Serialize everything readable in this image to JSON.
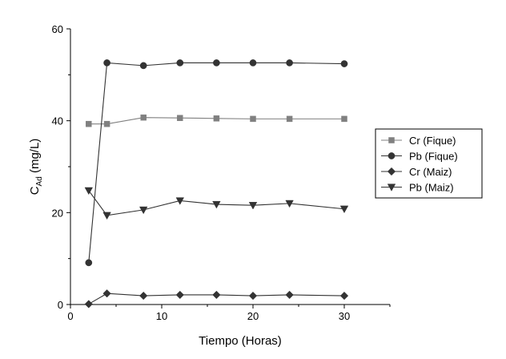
{
  "chart_data": {
    "type": "line",
    "xlabel": "Tiempo (Horas)",
    "ylabel": {
      "main": "C",
      "sub": "Ad",
      "unit": " (mg/L)"
    },
    "xlim": [
      0,
      35
    ],
    "ylim": [
      0,
      60
    ],
    "xticks": [
      0,
      10,
      20,
      30
    ],
    "yticks": [
      0,
      20,
      40,
      60
    ],
    "xtick_labels": [
      "0",
      "10",
      "20",
      "30"
    ],
    "ytick_labels": [
      "0",
      "20",
      "40",
      "60"
    ],
    "grid": false,
    "legend_position": "right",
    "series": [
      {
        "name": "Cr (Fique)",
        "marker": "square",
        "color": "#808080",
        "x": [
          2,
          4,
          8,
          12,
          16,
          20,
          24,
          30
        ],
        "y": [
          39.3,
          39.3,
          40.7,
          40.6,
          40.5,
          40.4,
          40.4,
          40.4
        ]
      },
      {
        "name": "Pb (Fique)",
        "marker": "circle",
        "color": "#333333",
        "x": [
          2,
          4,
          8,
          12,
          16,
          20,
          24,
          30
        ],
        "y": [
          9.1,
          52.6,
          52.0,
          52.6,
          52.6,
          52.6,
          52.6,
          52.4
        ]
      },
      {
        "name": "Cr (Maiz)",
        "marker": "diamond",
        "color": "#333333",
        "x": [
          2,
          4,
          8,
          12,
          16,
          20,
          24,
          30
        ],
        "y": [
          0.1,
          2.4,
          1.9,
          2.1,
          2.1,
          1.9,
          2.1,
          1.9
        ]
      },
      {
        "name": "Pb (Maiz)",
        "marker": "triangle-down",
        "color": "#333333",
        "x": [
          2,
          4,
          8,
          12,
          16,
          20,
          24,
          30
        ],
        "y": [
          24.8,
          19.4,
          20.6,
          22.6,
          21.8,
          21.6,
          22.0,
          20.8
        ]
      }
    ]
  }
}
